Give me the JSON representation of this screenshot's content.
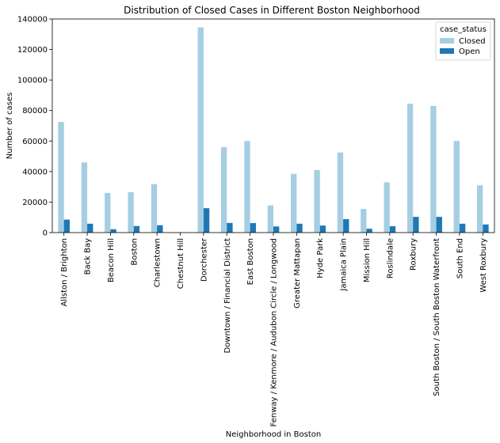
{
  "chart_data": {
    "type": "bar",
    "title": "Distribution of Closed Cases in Different Boston Neighborhood",
    "xlabel": "Neighborhood in Boston",
    "ylabel": "Number of cases",
    "ylim": [
      0,
      140000
    ],
    "yticks": [
      0,
      20000,
      40000,
      60000,
      80000,
      100000,
      120000,
      140000
    ],
    "grid": false,
    "legend": {
      "title": "case_status",
      "placement": "top-right"
    },
    "categories": [
      "Allston / Brighton",
      "Back Bay",
      "Beacon Hill",
      "Boston",
      "Charlestown",
      "Chestnut Hill",
      "Dorchester",
      "Downtown / Financial District",
      "East Boston",
      "Fenway / Kenmore / Audubon Circle / Longwood",
      "Greater Mattapan",
      "Hyde Park",
      "Jamaica Plain",
      "Mission Hill",
      "Roslindale",
      "Roxbury",
      "South Boston / South Boston Waterfront",
      "South End",
      "West Roxbury"
    ],
    "series": [
      {
        "name": "Closed",
        "color": "#a6cee3",
        "values": [
          72500,
          46000,
          26000,
          26500,
          31800,
          100,
          134500,
          56000,
          60000,
          17800,
          38500,
          41000,
          52500,
          15500,
          33000,
          84500,
          83000,
          60000,
          31000
        ]
      },
      {
        "name": "Open",
        "color": "#1f78b4",
        "values": [
          8500,
          5800,
          2200,
          4300,
          4800,
          50,
          16000,
          6300,
          6200,
          4000,
          5800,
          4600,
          8800,
          2500,
          4200,
          10300,
          10300,
          5800,
          5300
        ]
      }
    ]
  }
}
